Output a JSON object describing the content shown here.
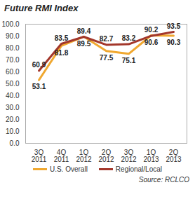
{
  "chart_data": {
    "type": "line",
    "title": "Future RMI Index",
    "source": "Source: RCLCO",
    "categories": [
      "3Q 2011",
      "4Q 2011",
      "1Q 2012",
      "2Q 2012",
      "3Q 2012",
      "1Q 2013",
      "2Q 2013"
    ],
    "series": [
      {
        "name": "U.S. Overall",
        "color": "#f0a830",
        "values": [
          53.1,
          81.8,
          89.5,
          77.5,
          75.1,
          90.6,
          90.3
        ]
      },
      {
        "name": "Regional/Local",
        "color": "#a3372b",
        "values": [
          60.9,
          83.5,
          89.4,
          82.7,
          83.2,
          90.2,
          93.5
        ]
      }
    ],
    "ylim": [
      0,
      100
    ],
    "yticks": [
      {
        "value": 0,
        "label": "0.0"
      },
      {
        "value": 10,
        "label": "10.0"
      },
      {
        "value": 20,
        "label": "20.0"
      },
      {
        "value": 30,
        "label": "30.0"
      },
      {
        "value": 40,
        "label": "40.0"
      },
      {
        "value": 50,
        "label": "50.0"
      },
      {
        "value": 60,
        "label": "60.0"
      },
      {
        "value": 70,
        "label": "70.0"
      },
      {
        "value": 80,
        "label": "80.0"
      },
      {
        "value": 90,
        "label": "90.0"
      },
      {
        "value": 100,
        "label": "100.0"
      }
    ],
    "grid": false,
    "legend": "bottom",
    "data_labels": true
  }
}
